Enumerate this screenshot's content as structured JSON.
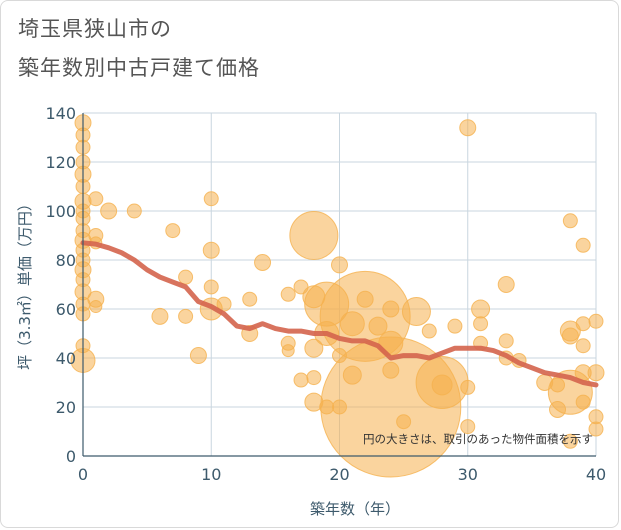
{
  "chart_data": {
    "type": "scatter",
    "title_lines": [
      "埼玉県狭山市の",
      "築年数別中古戸建て価格"
    ],
    "xlabel": "築年数（年）",
    "ylabel": "坪（3.3㎡）単価（万円）",
    "xlim": [
      0,
      40
    ],
    "ylim": [
      0,
      140
    ],
    "xticks": [
      "0",
      "10",
      "20",
      "30",
      "40"
    ],
    "yticks": [
      "0",
      "20",
      "40",
      "60",
      "80",
      "100",
      "120",
      "140"
    ],
    "grid": true,
    "annotation": "円の大きさは、取引のあった物件面積を示す",
    "bubble_color": "#f5b14f",
    "trend_color": "#d4644c",
    "points": [
      {
        "x": 0,
        "y": 136,
        "s": 8
      },
      {
        "x": 0,
        "y": 131,
        "s": 7
      },
      {
        "x": 0,
        "y": 126,
        "s": 7
      },
      {
        "x": 0,
        "y": 120,
        "s": 7
      },
      {
        "x": 0,
        "y": 115,
        "s": 8
      },
      {
        "x": 0,
        "y": 110,
        "s": 7
      },
      {
        "x": 0,
        "y": 104,
        "s": 8
      },
      {
        "x": 0,
        "y": 100,
        "s": 7
      },
      {
        "x": 0,
        "y": 97,
        "s": 7
      },
      {
        "x": 0,
        "y": 92,
        "s": 7
      },
      {
        "x": 0,
        "y": 88,
        "s": 8
      },
      {
        "x": 0,
        "y": 84,
        "s": 7
      },
      {
        "x": 0,
        "y": 80,
        "s": 7
      },
      {
        "x": 0,
        "y": 76,
        "s": 8
      },
      {
        "x": 0,
        "y": 72,
        "s": 7
      },
      {
        "x": 0,
        "y": 67,
        "s": 8
      },
      {
        "x": 0,
        "y": 62,
        "s": 7
      },
      {
        "x": 0,
        "y": 58,
        "s": 7
      },
      {
        "x": 0,
        "y": 45,
        "s": 7
      },
      {
        "x": 0,
        "y": 39,
        "s": 12
      },
      {
        "x": 1,
        "y": 105,
        "s": 7
      },
      {
        "x": 1,
        "y": 90,
        "s": 7
      },
      {
        "x": 1,
        "y": 87,
        "s": 6
      },
      {
        "x": 1,
        "y": 64,
        "s": 8
      },
      {
        "x": 1,
        "y": 61,
        "s": 6
      },
      {
        "x": 2,
        "y": 100,
        "s": 8
      },
      {
        "x": 4,
        "y": 100,
        "s": 7
      },
      {
        "x": 6,
        "y": 57,
        "s": 8
      },
      {
        "x": 7,
        "y": 92,
        "s": 7
      },
      {
        "x": 8,
        "y": 73,
        "s": 7
      },
      {
        "x": 8,
        "y": 57,
        "s": 7
      },
      {
        "x": 9,
        "y": 41,
        "s": 8
      },
      {
        "x": 10,
        "y": 105,
        "s": 7
      },
      {
        "x": 10,
        "y": 84,
        "s": 8
      },
      {
        "x": 10,
        "y": 69,
        "s": 7
      },
      {
        "x": 10,
        "y": 60,
        "s": 11
      },
      {
        "x": 11,
        "y": 62,
        "s": 7
      },
      {
        "x": 13,
        "y": 64,
        "s": 7
      },
      {
        "x": 13,
        "y": 50,
        "s": 8
      },
      {
        "x": 14,
        "y": 79,
        "s": 8
      },
      {
        "x": 16,
        "y": 66,
        "s": 7
      },
      {
        "x": 16,
        "y": 46,
        "s": 7
      },
      {
        "x": 16,
        "y": 43,
        "s": 6
      },
      {
        "x": 17,
        "y": 69,
        "s": 7
      },
      {
        "x": 17,
        "y": 31,
        "s": 7
      },
      {
        "x": 18,
        "y": 90,
        "s": 24
      },
      {
        "x": 18,
        "y": 65,
        "s": 11
      },
      {
        "x": 18,
        "y": 44,
        "s": 9
      },
      {
        "x": 18,
        "y": 32,
        "s": 7
      },
      {
        "x": 18,
        "y": 22,
        "s": 9
      },
      {
        "x": 19,
        "y": 62,
        "s": 22
      },
      {
        "x": 19,
        "y": 50,
        "s": 12
      },
      {
        "x": 19,
        "y": 20,
        "s": 7
      },
      {
        "x": 20,
        "y": 78,
        "s": 8
      },
      {
        "x": 20,
        "y": 41,
        "s": 7
      },
      {
        "x": 20,
        "y": 20,
        "s": 7
      },
      {
        "x": 21,
        "y": 54,
        "s": 12
      },
      {
        "x": 21,
        "y": 33,
        "s": 9
      },
      {
        "x": 22,
        "y": 57,
        "s": 45
      },
      {
        "x": 22,
        "y": 64,
        "s": 8
      },
      {
        "x": 23,
        "y": 53,
        "s": 9
      },
      {
        "x": 24,
        "y": 60,
        "s": 8
      },
      {
        "x": 24,
        "y": 46,
        "s": 12
      },
      {
        "x": 24,
        "y": 35,
        "s": 8
      },
      {
        "x": 24,
        "y": 20,
        "s": 70
      },
      {
        "x": 25,
        "y": 14,
        "s": 7
      },
      {
        "x": 26,
        "y": 59,
        "s": 14
      },
      {
        "x": 27,
        "y": 51,
        "s": 7
      },
      {
        "x": 28,
        "y": 30,
        "s": 26
      },
      {
        "x": 28,
        "y": 29,
        "s": 10
      },
      {
        "x": 29,
        "y": 53,
        "s": 7
      },
      {
        "x": 30,
        "y": 134,
        "s": 8
      },
      {
        "x": 30,
        "y": 28,
        "s": 7
      },
      {
        "x": 30,
        "y": 12,
        "s": 7
      },
      {
        "x": 31,
        "y": 60,
        "s": 9
      },
      {
        "x": 31,
        "y": 54,
        "s": 7
      },
      {
        "x": 31,
        "y": 46,
        "s": 7
      },
      {
        "x": 33,
        "y": 70,
        "s": 8
      },
      {
        "x": 33,
        "y": 47,
        "s": 7
      },
      {
        "x": 33,
        "y": 40,
        "s": 7
      },
      {
        "x": 34,
        "y": 39,
        "s": 7
      },
      {
        "x": 36,
        "y": 30,
        "s": 8
      },
      {
        "x": 37,
        "y": 29,
        "s": 7
      },
      {
        "x": 37,
        "y": 19,
        "s": 8
      },
      {
        "x": 38,
        "y": 96,
        "s": 7
      },
      {
        "x": 38,
        "y": 51,
        "s": 10
      },
      {
        "x": 38,
        "y": 49,
        "s": 8
      },
      {
        "x": 38,
        "y": 26,
        "s": 22
      },
      {
        "x": 38,
        "y": 6,
        "s": 7
      },
      {
        "x": 39,
        "y": 86,
        "s": 7
      },
      {
        "x": 39,
        "y": 54,
        "s": 7
      },
      {
        "x": 39,
        "y": 45,
        "s": 7
      },
      {
        "x": 39,
        "y": 34,
        "s": 8
      },
      {
        "x": 39,
        "y": 22,
        "s": 7
      },
      {
        "x": 40,
        "y": 55,
        "s": 7
      },
      {
        "x": 40,
        "y": 34,
        "s": 8
      },
      {
        "x": 40,
        "y": 16,
        "s": 7
      },
      {
        "x": 40,
        "y": 11,
        "s": 7
      }
    ],
    "trend": [
      {
        "x": 0,
        "y": 87
      },
      {
        "x": 1,
        "y": 86.5
      },
      {
        "x": 2,
        "y": 85
      },
      {
        "x": 3,
        "y": 83
      },
      {
        "x": 4,
        "y": 80
      },
      {
        "x": 5,
        "y": 76
      },
      {
        "x": 6,
        "y": 73
      },
      {
        "x": 7,
        "y": 71
      },
      {
        "x": 8,
        "y": 69
      },
      {
        "x": 9,
        "y": 63
      },
      {
        "x": 10,
        "y": 61
      },
      {
        "x": 11,
        "y": 58
      },
      {
        "x": 12,
        "y": 53
      },
      {
        "x": 13,
        "y": 52
      },
      {
        "x": 14,
        "y": 54
      },
      {
        "x": 15,
        "y": 52
      },
      {
        "x": 16,
        "y": 51
      },
      {
        "x": 17,
        "y": 51
      },
      {
        "x": 18,
        "y": 50
      },
      {
        "x": 19,
        "y": 50
      },
      {
        "x": 20,
        "y": 48
      },
      {
        "x": 21,
        "y": 47
      },
      {
        "x": 22,
        "y": 47
      },
      {
        "x": 23,
        "y": 45
      },
      {
        "x": 24,
        "y": 40
      },
      {
        "x": 25,
        "y": 41
      },
      {
        "x": 26,
        "y": 41
      },
      {
        "x": 27,
        "y": 40
      },
      {
        "x": 28,
        "y": 42
      },
      {
        "x": 29,
        "y": 44
      },
      {
        "x": 30,
        "y": 44
      },
      {
        "x": 31,
        "y": 44
      },
      {
        "x": 32,
        "y": 43
      },
      {
        "x": 33,
        "y": 41
      },
      {
        "x": 34,
        "y": 38
      },
      {
        "x": 35,
        "y": 36
      },
      {
        "x": 36,
        "y": 34
      },
      {
        "x": 37,
        "y": 33
      },
      {
        "x": 38,
        "y": 32
      },
      {
        "x": 39,
        "y": 30
      },
      {
        "x": 40,
        "y": 29
      }
    ]
  }
}
